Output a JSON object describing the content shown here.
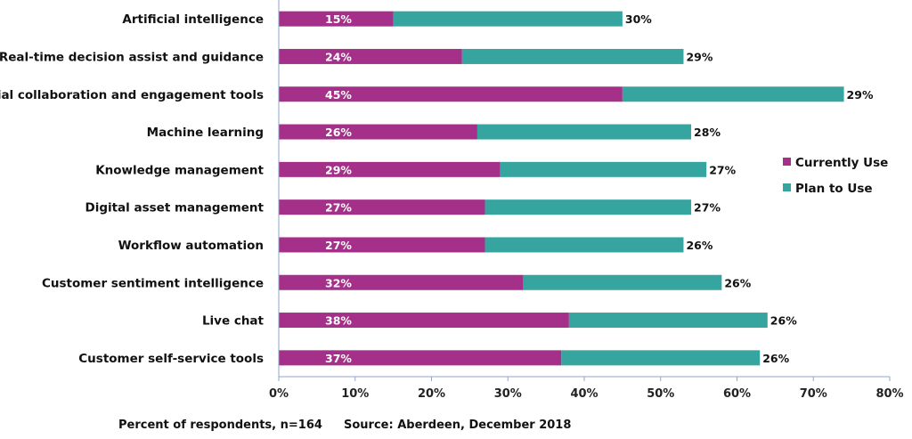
{
  "chart_data": {
    "type": "bar",
    "orientation": "horizontal",
    "stacked": true,
    "categories": [
      "Artificial intelligence",
      "Real-time decision assist and guidance",
      "Social collaboration and engagement tools",
      "Machine learning",
      "Knowledge management",
      "Digital asset management",
      "Workflow automation",
      "Customer sentiment intelligence",
      "Live chat",
      "Customer self-service tools"
    ],
    "series": [
      {
        "name": "Currently Use",
        "color": "#a4308a",
        "values": [
          15,
          24,
          45,
          26,
          29,
          27,
          27,
          32,
          38,
          37
        ],
        "labels": [
          "15%",
          "24%",
          "45%",
          "26%",
          "29%",
          "27%",
          "27%",
          "32%",
          "38%",
          "37%"
        ]
      },
      {
        "name": "Plan to Use",
        "color": "#36a5a0",
        "values": [
          30,
          29,
          29,
          28,
          27,
          27,
          26,
          26,
          26,
          26
        ],
        "labels": [
          "30%",
          "29%",
          "29%",
          "28%",
          "27%",
          "27%",
          "26%",
          "26%",
          "26%",
          "26%"
        ]
      }
    ],
    "xlim": [
      0,
      80
    ],
    "xticks": [
      0,
      10,
      20,
      30,
      40,
      50,
      60,
      70,
      80
    ],
    "xtick_labels": [
      "0%",
      "10%",
      "20%",
      "30%",
      "40%",
      "50%",
      "60%",
      "70%",
      "80%"
    ],
    "legend_position": "right",
    "grid": false,
    "axis_color": "#8fa3cf"
  },
  "footer": {
    "note": "Percent of respondents, n=164",
    "source": "Source: Aberdeen, December 2018"
  }
}
